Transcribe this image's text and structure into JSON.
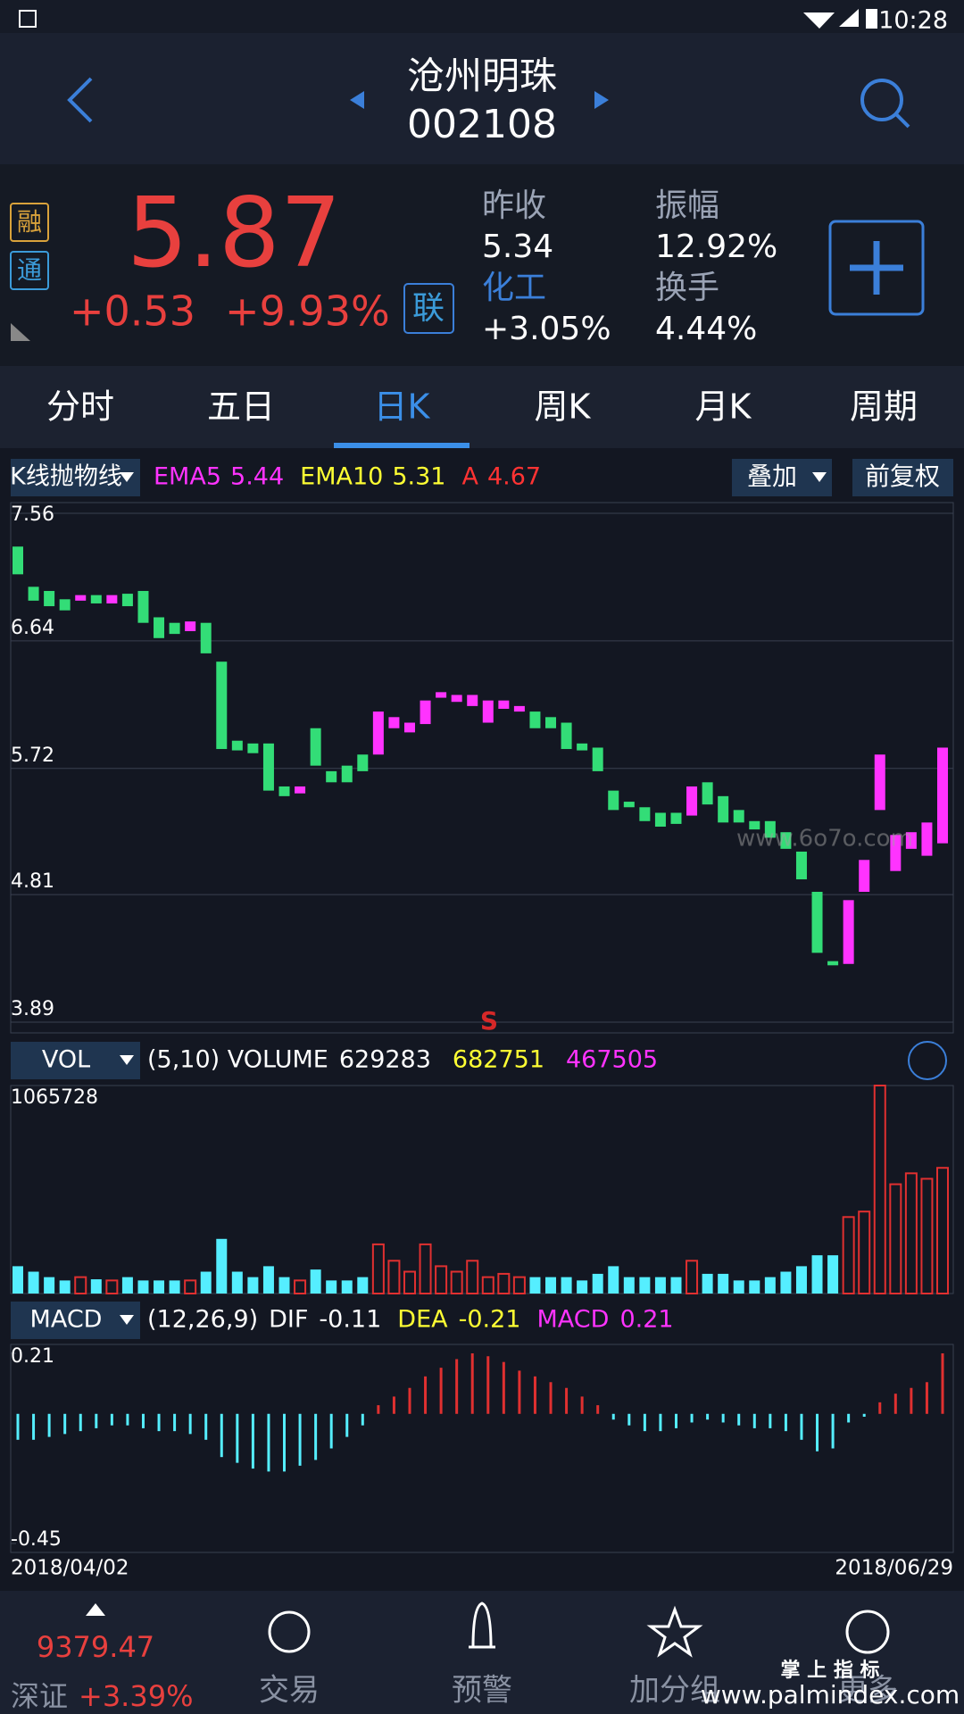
{
  "status_bar": {
    "time": "10:28"
  },
  "header": {
    "title": "沧州明珠",
    "code": "002108"
  },
  "quote": {
    "badges": [
      "融",
      "通"
    ],
    "price": "5.87",
    "change": "+0.53",
    "change_pct": "+9.93%",
    "link_badge": "联",
    "stats": [
      {
        "label": "昨收",
        "value": "5.34"
      },
      {
        "label": "化工",
        "value": "+3.05%"
      },
      {
        "label": "振幅",
        "value": "12.92%"
      },
      {
        "label": "换手",
        "value": "4.44%"
      }
    ]
  },
  "tabs": {
    "items": [
      "分时",
      "五日",
      "日K",
      "周K",
      "月K",
      "周期"
    ],
    "active": 2
  },
  "kline": {
    "type": "candlestick",
    "indicator": "K线抛物线",
    "legend": [
      {
        "name": "EMA5",
        "value": 5.44,
        "color": "#ff33ff"
      },
      {
        "name": "EMA10",
        "value": 5.31,
        "color": "#ffff33"
      },
      {
        "name": "A",
        "value": 4.67,
        "color": "#ff3333"
      }
    ],
    "buttons": [
      "叠加",
      "前复权"
    ],
    "signal": "S",
    "watermark": "www.6o7o.com",
    "ylim": [
      3.89,
      7.56
    ],
    "yticks": [
      7.56,
      6.64,
      5.72,
      4.81,
      3.89
    ],
    "candles": [
      [
        7.32,
        7.12
      ],
      [
        7.03,
        6.93
      ],
      [
        7.0,
        6.89
      ],
      [
        6.94,
        6.86
      ],
      [
        6.93,
        6.97
      ],
      [
        6.97,
        6.91
      ],
      [
        6.91,
        6.97
      ],
      [
        6.98,
        6.89
      ],
      [
        7.0,
        6.77
      ],
      [
        6.81,
        6.66
      ],
      [
        6.77,
        6.69
      ],
      [
        6.71,
        6.78
      ],
      [
        6.77,
        6.55
      ],
      [
        6.49,
        5.86
      ],
      [
        5.92,
        5.85
      ],
      [
        5.9,
        5.83
      ],
      [
        5.9,
        5.56
      ],
      [
        5.59,
        5.52
      ],
      [
        5.54,
        5.59
      ],
      [
        6.01,
        5.74
      ],
      [
        5.7,
        5.62
      ],
      [
        5.74,
        5.62
      ],
      [
        5.82,
        5.7
      ],
      [
        5.82,
        6.13
      ],
      [
        6.01,
        6.09
      ],
      [
        5.98,
        6.05
      ],
      [
        6.04,
        6.21
      ],
      [
        6.23,
        6.27
      ],
      [
        6.2,
        6.25
      ],
      [
        6.17,
        6.25
      ],
      [
        6.05,
        6.21
      ],
      [
        6.15,
        6.21
      ],
      [
        6.13,
        6.17
      ],
      [
        6.13,
        6.01
      ],
      [
        6.09,
        6.01
      ],
      [
        6.05,
        5.86
      ],
      [
        5.9,
        5.85
      ],
      [
        5.87,
        5.7
      ],
      [
        5.56,
        5.42
      ],
      [
        5.48,
        5.44
      ],
      [
        5.44,
        5.34
      ],
      [
        5.4,
        5.3
      ],
      [
        5.4,
        5.32
      ],
      [
        5.38,
        5.59
      ],
      [
        5.62,
        5.46
      ],
      [
        5.52,
        5.33
      ],
      [
        5.42,
        5.33
      ],
      [
        5.34,
        5.28
      ],
      [
        5.34,
        5.22
      ],
      [
        5.26,
        5.14
      ],
      [
        5.12,
        4.92
      ],
      [
        4.83,
        4.39
      ],
      [
        4.33,
        4.3
      ],
      [
        4.31,
        4.77
      ],
      [
        4.83,
        5.06
      ],
      [
        5.42,
        5.82
      ],
      [
        4.98,
        5.24
      ],
      [
        5.14,
        5.26
      ],
      [
        5.09,
        5.33
      ],
      [
        5.18,
        5.87
      ]
    ]
  },
  "volume": {
    "type": "bar",
    "indicator": "VOL",
    "params": "(5,10) VOLUME",
    "legend": [
      {
        "value": 629283,
        "color": "#ffffff"
      },
      {
        "value": 682751,
        "color": "#ffff33"
      },
      {
        "value": 467505,
        "color": "#ff33ff"
      }
    ],
    "ylim": [
      0,
      1065728
    ],
    "yticks": [
      1065728
    ],
    "values": [
      140000,
      112000,
      84000,
      67000,
      84000,
      73000,
      67000,
      84000,
      67000,
      67000,
      67000,
      67000,
      112000,
      280000,
      112000,
      84000,
      140000,
      84000,
      67000,
      123000,
      67000,
      67000,
      84000,
      252000,
      168000,
      112000,
      252000,
      140000,
      112000,
      168000,
      84000,
      101000,
      84000,
      84000,
      84000,
      84000,
      67000,
      101000,
      140000,
      84000,
      84000,
      84000,
      84000,
      168000,
      101000,
      101000,
      67000,
      67000,
      84000,
      112000,
      140000,
      196000,
      196000,
      392000,
      420000,
      1065728,
      560000,
      616000,
      588000,
      644000
    ]
  },
  "macd": {
    "type": "bar",
    "indicator": "MACD",
    "params": "(12,26,9)",
    "legend": [
      {
        "name": "DIF",
        "value": -0.11,
        "color": "#ffffff"
      },
      {
        "name": "DEA",
        "value": -0.21,
        "color": "#ffff33"
      },
      {
        "name": "MACD",
        "value": 0.21,
        "color": "#ff33ff"
      }
    ],
    "ylim": [
      -0.45,
      0.21
    ],
    "yticks": [
      0.21,
      -0.45
    ],
    "values": [
      -0.09,
      -0.09,
      -0.08,
      -0.07,
      -0.06,
      -0.05,
      -0.04,
      -0.04,
      -0.05,
      -0.06,
      -0.06,
      -0.07,
      -0.09,
      -0.15,
      -0.17,
      -0.19,
      -0.2,
      -0.2,
      -0.18,
      -0.16,
      -0.12,
      -0.08,
      -0.04,
      0.03,
      0.06,
      0.09,
      0.13,
      0.16,
      0.19,
      0.21,
      0.2,
      0.18,
      0.15,
      0.13,
      0.11,
      0.09,
      0.06,
      0.03,
      -0.02,
      -0.04,
      -0.06,
      -0.06,
      -0.05,
      -0.03,
      -0.02,
      -0.03,
      -0.04,
      -0.05,
      -0.05,
      -0.06,
      -0.09,
      -0.13,
      -0.12,
      -0.03,
      -0.01,
      0.04,
      0.07,
      0.09,
      0.11,
      0.21
    ]
  },
  "dates": [
    "2018/04/02",
    "2018/06/29"
  ],
  "footer": {
    "index_value": "9379.47",
    "index_name": "深证",
    "index_change": "+3.39%",
    "nav": [
      "交易",
      "预警",
      "加分组",
      "更多"
    ],
    "watermark": [
      "掌 上 指 标",
      "www.palmindex.com"
    ]
  }
}
